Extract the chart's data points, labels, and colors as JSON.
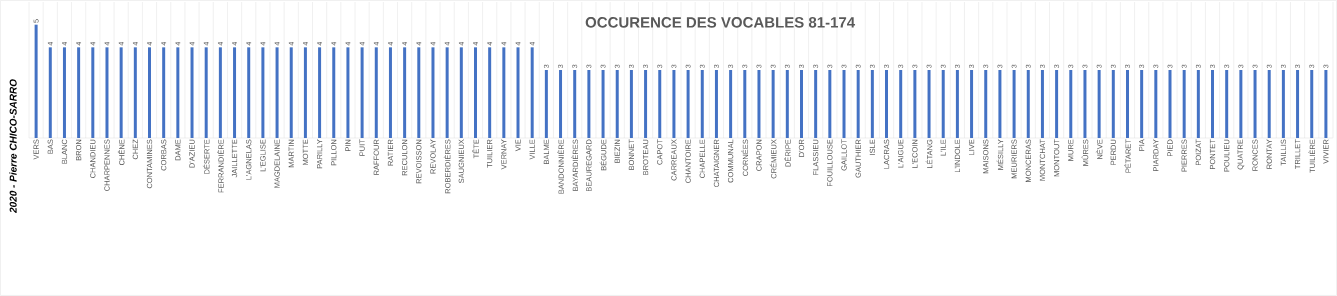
{
  "chart_data": {
    "type": "bar",
    "title": "OCCURENCE DES VOCABLES 81-174",
    "annotations": [
      "2020 - Pierre CHICO-SARRO"
    ],
    "categories": [
      "VERS",
      "BAS",
      "BLANC",
      "BRON",
      "CHANDIEU",
      "CHARPENNES",
      "CHÊNE",
      "CHEZ",
      "CONTAMINES",
      "CORBAS",
      "DAME",
      "D'AZIEU",
      "DÉSERTE",
      "FERRANDIÈRE",
      "JAILLETTE",
      "L'AGNELAS",
      "L'EGLISE",
      "MAGDELAINE",
      "MARTIN",
      "MOTTE",
      "PARILLY",
      "PILLON",
      "PIN",
      "PUIT",
      "RAFFOUR",
      "RATIER",
      "RECULON",
      "REVOISSON",
      "REVOLAY",
      "ROBERDIÈRES",
      "SAUGNIEUX",
      "TÊTE",
      "TUILIER",
      "VERNAY",
      "VIE",
      "VILLE",
      "BALME",
      "BANDONNIÈRE",
      "BAYARDIÈRES",
      "BEAUREGARD",
      "BÉGUDE",
      "BIEZIN",
      "BONNET",
      "BROTEAU",
      "CAPOT",
      "CARREAUX",
      "CHANTOIRE",
      "CHAPELLE",
      "CHATAIGNER",
      "COMMUNAL",
      "CORNÉES",
      "CRAPON",
      "CRÉMIEUX",
      "DÉRIPE",
      "D'OR",
      "FLASSIEU",
      "FOUILLOUSE",
      "GAILLOT",
      "GAUTHIER",
      "ISLE",
      "LACRAS",
      "L'AIGUE",
      "L'ECOIN",
      "LÉTANG",
      "L'ILE",
      "L'INDOLE",
      "LIVE",
      "MAISONS",
      "MÉSILLY",
      "MEURIERS",
      "MONCERAS",
      "MONTCHAT",
      "MONTOUT",
      "MURE",
      "MÛRES",
      "NÈVE",
      "PERDU",
      "PÉTARET",
      "PIA",
      "PIARDAY",
      "PIED",
      "PIERRES",
      "POIZAT",
      "PONTET",
      "POULIEU",
      "QUATRE",
      "RONCES",
      "RONTAY",
      "TAILLIS",
      "TRILLET",
      "TUILIÈRE",
      "VIVIER"
    ],
    "values": [
      5,
      4,
      4,
      4,
      4,
      4,
      4,
      4,
      4,
      4,
      4,
      4,
      4,
      4,
      4,
      4,
      4,
      4,
      4,
      4,
      4,
      4,
      4,
      4,
      4,
      4,
      4,
      4,
      4,
      4,
      4,
      4,
      4,
      4,
      4,
      4,
      3,
      3,
      3,
      3,
      3,
      3,
      3,
      3,
      3,
      3,
      3,
      3,
      3,
      3,
      3,
      3,
      3,
      3,
      3,
      3,
      3,
      3,
      3,
      3,
      3,
      3,
      3,
      3,
      3,
      3,
      3,
      3,
      3,
      3,
      3,
      3,
      3,
      3,
      3,
      3,
      3,
      3,
      3,
      3,
      3,
      3,
      3,
      3,
      3,
      3,
      3,
      3,
      3,
      3,
      3,
      3
    ],
    "color": "#4472c4",
    "ylim": [
      0,
      6
    ],
    "data_labels": true,
    "grid": "x"
  }
}
